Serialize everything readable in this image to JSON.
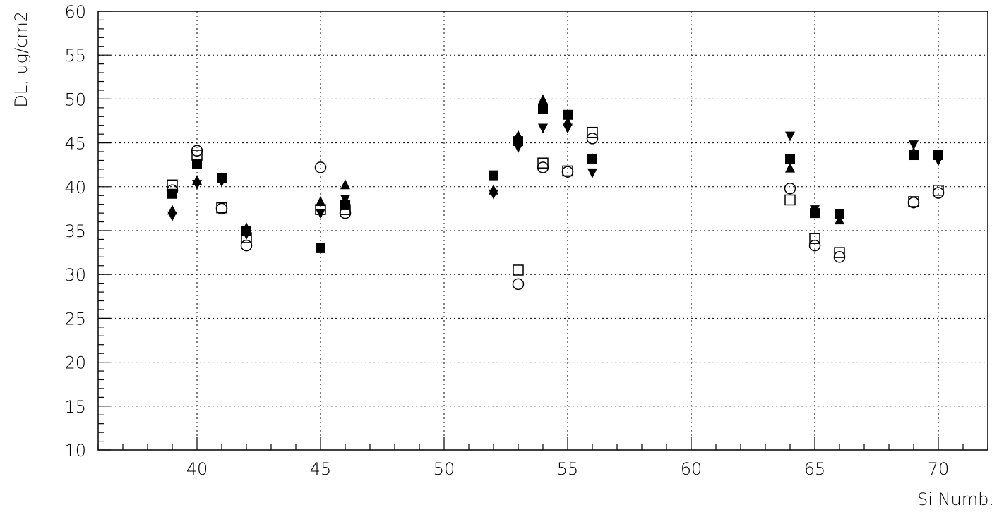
{
  "chart_data": {
    "type": "scatter",
    "title": "",
    "xlabel": "Si Numb.",
    "ylabel": "DL, ug/cm2",
    "xlim": [
      36,
      72
    ],
    "ylim": [
      10,
      60
    ],
    "x_ticks": [
      40,
      45,
      50,
      55,
      60,
      65,
      70
    ],
    "y_ticks": [
      10,
      15,
      20,
      25,
      30,
      35,
      40,
      45,
      50,
      55,
      60
    ],
    "grid": true,
    "series": [
      {
        "marker": "filled-square",
        "x": [
          39,
          40,
          41,
          42,
          45,
          46,
          52,
          53,
          54,
          55,
          56,
          64,
          65,
          66,
          69,
          70
        ],
        "y": [
          39.2,
          42.6,
          41.0,
          35.0,
          33.0,
          37.9,
          41.3,
          45.2,
          48.9,
          48.2,
          43.2,
          43.2,
          37.0,
          36.9,
          43.6,
          43.6
        ]
      },
      {
        "marker": "filled-triangle-up",
        "x": [
          39,
          40,
          41,
          42,
          45,
          46,
          52,
          53,
          54,
          55,
          56,
          64,
          65,
          66,
          69,
          70
        ],
        "y": [
          37.3,
          40.7,
          41.0,
          35.3,
          38.3,
          40.2,
          39.6,
          45.8,
          49.9,
          47.4,
          43.2,
          42.1,
          37.0,
          36.2,
          43.9,
          43.6
        ]
      },
      {
        "marker": "filled-triangle-down",
        "x": [
          39,
          40,
          41,
          42,
          45,
          46,
          52,
          53,
          54,
          55,
          56,
          64,
          65,
          66,
          69,
          70
        ],
        "y": [
          36.7,
          40.3,
          40.6,
          34.6,
          37.0,
          38.6,
          39.2,
          44.5,
          46.7,
          46.7,
          41.6,
          45.8,
          37.4,
          36.9,
          44.8,
          43.0
        ]
      },
      {
        "marker": "open-square",
        "x": [
          39,
          40,
          41,
          42,
          45,
          46,
          53,
          54,
          55,
          56,
          64,
          65,
          66,
          69,
          70
        ],
        "y": [
          40.2,
          43.6,
          37.6,
          34.2,
          37.4,
          37.4,
          30.5,
          42.7,
          41.8,
          46.2,
          38.5,
          34.1,
          32.5,
          38.3,
          39.6
        ]
      },
      {
        "marker": "open-circle",
        "x": [
          39,
          40,
          41,
          42,
          45,
          46,
          53,
          54,
          55,
          56,
          64,
          65,
          66,
          69,
          70
        ],
        "y": [
          39.6,
          44.1,
          37.5,
          33.3,
          42.2,
          37.0,
          28.9,
          42.2,
          41.7,
          45.5,
          39.8,
          33.3,
          32.0,
          38.2,
          39.3
        ]
      }
    ]
  }
}
